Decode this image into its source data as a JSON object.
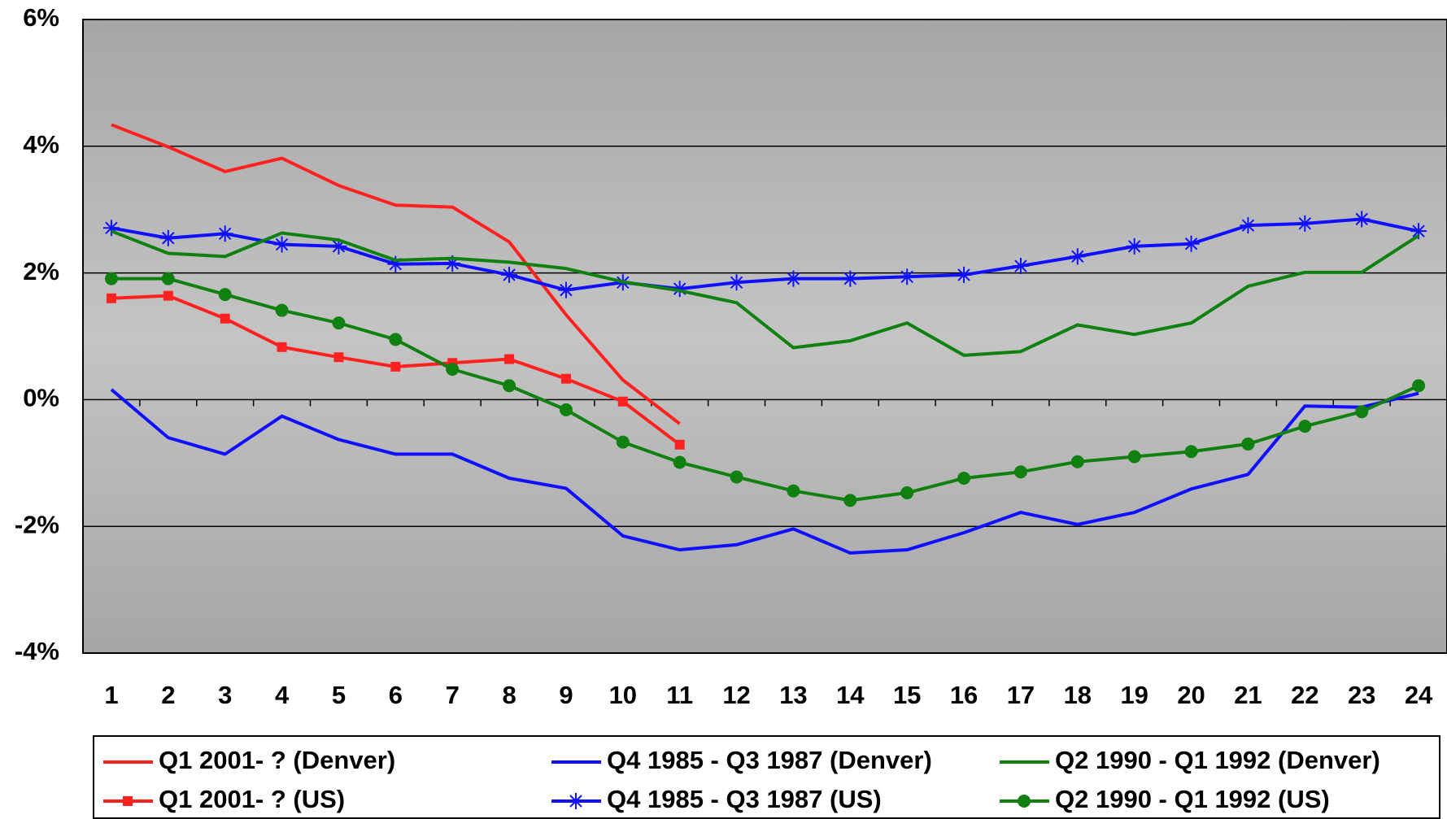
{
  "chart_data": {
    "type": "line",
    "categories": [
      1,
      2,
      3,
      4,
      5,
      6,
      7,
      8,
      9,
      10,
      11,
      12,
      13,
      14,
      15,
      16,
      17,
      18,
      19,
      20,
      21,
      22,
      23,
      24
    ],
    "series": [
      {
        "name": "Q1 2001- ? (Denver)",
        "color": "#ff2020",
        "marker": "none",
        "values": [
          4.34,
          3.99,
          3.6,
          3.81,
          3.38,
          3.07,
          3.04,
          2.49,
          1.34,
          0.31,
          -0.38,
          null,
          null,
          null,
          null,
          null,
          null,
          null,
          null,
          null,
          null,
          null,
          null,
          null
        ]
      },
      {
        "name": "Q1 2001- ? (US)",
        "color": "#ff2020",
        "marker": "square",
        "values": [
          1.6,
          1.64,
          1.28,
          0.83,
          0.67,
          0.52,
          0.58,
          0.64,
          0.33,
          -0.03,
          -0.71,
          null,
          null,
          null,
          null,
          null,
          null,
          null,
          null,
          null,
          null,
          null,
          null,
          null
        ]
      },
      {
        "name": "Q4 1985 - Q3 1987 (Denver)",
        "color": "#1010ff",
        "marker": "none",
        "values": [
          0.16,
          -0.6,
          -0.86,
          -0.26,
          -0.63,
          -0.86,
          -0.86,
          -1.24,
          -1.4,
          -2.15,
          -2.37,
          -2.29,
          -2.04,
          -2.42,
          -2.37,
          -2.1,
          -1.78,
          -1.97,
          -1.78,
          -1.41,
          -1.18,
          -0.1,
          -0.12,
          0.1
        ]
      },
      {
        "name": "Q4 1985 - Q3 1987 (US)",
        "color": "#1010ff",
        "marker": "star",
        "values": [
          2.71,
          2.55,
          2.62,
          2.45,
          2.42,
          2.14,
          2.15,
          1.97,
          1.73,
          1.85,
          1.75,
          1.85,
          1.91,
          1.91,
          1.94,
          1.97,
          2.11,
          2.26,
          2.42,
          2.46,
          2.75,
          2.78,
          2.85,
          2.66
        ]
      },
      {
        "name": "Q2 1990 - Q1 1992 (Denver)",
        "color": "#108010",
        "marker": "none",
        "values": [
          2.66,
          2.31,
          2.26,
          2.63,
          2.52,
          2.2,
          2.23,
          2.17,
          2.07,
          1.86,
          1.72,
          1.53,
          0.82,
          0.93,
          1.21,
          0.7,
          0.76,
          1.18,
          1.03,
          1.21,
          1.79,
          2.01,
          2.01,
          2.59
        ]
      },
      {
        "name": "Q2 1990 - Q1 1992 (US)",
        "color": "#108010",
        "marker": "circle",
        "values": [
          1.91,
          1.91,
          1.66,
          1.41,
          1.21,
          0.95,
          0.48,
          0.22,
          -0.16,
          -0.67,
          -0.99,
          -1.22,
          -1.44,
          -1.59,
          -1.47,
          -1.24,
          -1.14,
          -0.98,
          -0.9,
          -0.82,
          -0.7,
          -0.42,
          -0.19,
          0.22
        ]
      }
    ],
    "ylim": [
      -4,
      6
    ],
    "yticks": [
      {
        "value": -4,
        "label": "-4%"
      },
      {
        "value": -2,
        "label": "-2%"
      },
      {
        "value": 0,
        "label": "0%"
      },
      {
        "value": 2,
        "label": "2%"
      },
      {
        "value": 4,
        "label": "4%"
      },
      {
        "value": 6,
        "label": "6%"
      }
    ],
    "grid": true
  }
}
